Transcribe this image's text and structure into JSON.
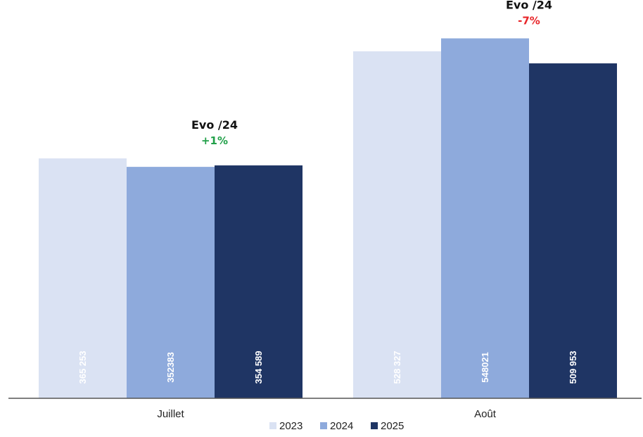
{
  "chart_data": {
    "type": "bar",
    "categories": [
      "Juillet",
      "Août"
    ],
    "series": [
      {
        "name": "2023",
        "values": [
          365253,
          528327
        ],
        "labels": [
          "365 253",
          "528 327"
        ],
        "color": "#dae2f3",
        "label_color": "#ffffff"
      },
      {
        "name": "2024",
        "values": [
          352383,
          548021
        ],
        "labels": [
          "352383",
          "548021"
        ],
        "color": "#8eaadc",
        "label_color": "#ffffff"
      },
      {
        "name": "2025",
        "values": [
          354589,
          509953
        ],
        "labels": [
          "354 589",
          "509 953"
        ],
        "color": "#1f3564",
        "label_color": "#ffffff"
      }
    ],
    "annotations": [
      {
        "category": "Juillet",
        "title": "Evo /24",
        "value": "+1%",
        "color": "#21a049"
      },
      {
        "category": "Août",
        "title": "Evo /24",
        "value": "-7%",
        "color": "#e8262a"
      }
    ],
    "ylim": [
      0,
      600000
    ],
    "grid": false,
    "legend_position": "bottom-center"
  }
}
